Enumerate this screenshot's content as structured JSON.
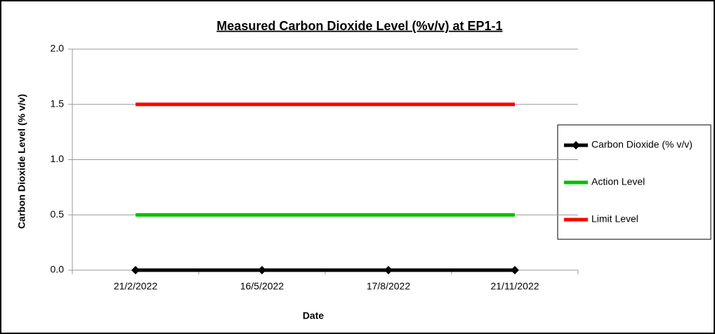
{
  "chart_data": {
    "type": "line",
    "title": "Measured Carbon Dioxide Level (%v/v) at EP1-1",
    "x_label": "Date",
    "y_label": "Carbon Dioxide Level (% v/v)",
    "categories": [
      "21/2/2022",
      "16/5/2022",
      "17/8/2022",
      "21/11/2022"
    ],
    "series": [
      {
        "name": "Carbon Dioxide (% v/v)",
        "color": "#000000",
        "marker": "diamond",
        "values": [
          0,
          0,
          0,
          0
        ]
      },
      {
        "name": "Action Level",
        "color": "#00c000",
        "values": [
          0.5,
          0.5,
          0.5,
          0.5
        ]
      },
      {
        "name": "Limit Level",
        "color": "#ff0000",
        "values": [
          1.5,
          1.5,
          1.5,
          1.5
        ]
      }
    ],
    "ylim": [
      0,
      2
    ],
    "yticks": [
      {
        "value": 0,
        "label": "0.0"
      },
      0.5,
      {
        "value": 1,
        "label": "1.0"
      },
      1.5,
      {
        "value": 2,
        "label": "2.0"
      }
    ],
    "grid": true,
    "legend": "right"
  }
}
